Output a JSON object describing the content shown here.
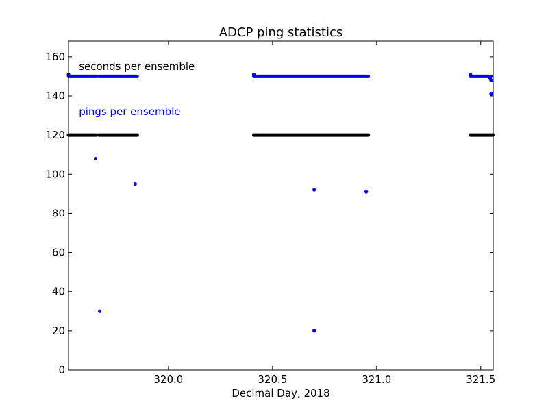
{
  "chart_data": {
    "type": "scatter",
    "title": "ADCP  ping statistics",
    "xlabel": "Decimal Day, 2018",
    "ylabel": "",
    "xlim": [
      319.52,
      321.56
    ],
    "ylim": [
      0,
      168
    ],
    "xticks": [
      320.0,
      320.5,
      321.0,
      321.5
    ],
    "xtick_labels": [
      "320.0",
      "320.5",
      "321.0",
      "321.5"
    ],
    "yticks": [
      0,
      20,
      40,
      60,
      80,
      100,
      120,
      140,
      160
    ],
    "ytick_labels": [
      "0",
      "20",
      "40",
      "60",
      "80",
      "100",
      "120",
      "140",
      "160"
    ],
    "grid": false,
    "annotations": [
      {
        "text": "seconds per ensemble",
        "color": "#000000",
        "x": 319.57,
        "y": 155
      },
      {
        "text": "pings per ensemble",
        "color": "#0000ff",
        "x": 319.57,
        "y": 132
      }
    ],
    "series": [
      {
        "name": "seconds per ensemble",
        "color": "#000000",
        "segments": [
          {
            "x_start": 319.52,
            "x_end": 319.655,
            "y": 120
          },
          {
            "x_start": 319.665,
            "x_end": 319.85,
            "y": 120
          },
          {
            "x_start": 320.41,
            "x_end": 320.96,
            "y": 120
          },
          {
            "x_start": 321.45,
            "x_end": 321.56,
            "y": 120
          }
        ],
        "points": []
      },
      {
        "name": "pings per ensemble",
        "color": "#0000ff",
        "segments": [
          {
            "x_start": 319.52,
            "x_end": 319.655,
            "y": 150
          },
          {
            "x_start": 319.665,
            "x_end": 319.85,
            "y": 150
          },
          {
            "x_start": 320.41,
            "x_end": 320.96,
            "y": 150
          },
          {
            "x_start": 321.45,
            "x_end": 321.55,
            "y": 150
          }
        ],
        "points": [
          {
            "x": 319.52,
            "y": 151
          },
          {
            "x": 320.41,
            "y": 151
          },
          {
            "x": 321.45,
            "y": 151
          },
          {
            "x": 319.65,
            "y": 108
          },
          {
            "x": 319.67,
            "y": 30
          },
          {
            "x": 319.84,
            "y": 95
          },
          {
            "x": 320.7,
            "y": 92
          },
          {
            "x": 320.7,
            "y": 20
          },
          {
            "x": 320.95,
            "y": 91
          },
          {
            "x": 321.545,
            "y": 149
          },
          {
            "x": 321.55,
            "y": 148
          },
          {
            "x": 321.55,
            "y": 141
          }
        ]
      }
    ]
  }
}
